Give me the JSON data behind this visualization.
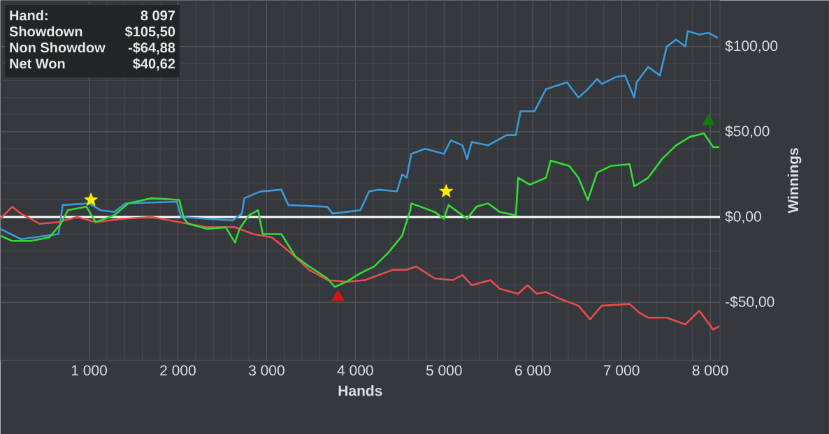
{
  "chart_data": {
    "type": "line",
    "xlabel": "Hands",
    "ylabel": "Winnings",
    "xlim": [
      0,
      8110
    ],
    "ylim": [
      -84,
      127
    ],
    "xticks": [
      {
        "value": 1000,
        "label": "1 000"
      },
      {
        "value": 2000,
        "label": "2 000"
      },
      {
        "value": 3000,
        "label": "3 000"
      },
      {
        "value": 4000,
        "label": "4 000"
      },
      {
        "value": 5000,
        "label": "5 000"
      },
      {
        "value": 6000,
        "label": "6 000"
      },
      {
        "value": 7000,
        "label": "7 000"
      },
      {
        "value": 8000,
        "label": "8 000"
      }
    ],
    "yticks": [
      {
        "value": -50,
        "label": "-$50,00"
      },
      {
        "value": 0,
        "label": "$0,00"
      },
      {
        "value": 50,
        "label": "$50,00"
      },
      {
        "value": 100,
        "label": "$100,00"
      }
    ],
    "grid": true,
    "marker": "none",
    "line_style": "solid",
    "ref_lines": [
      {
        "axis": "y",
        "value": 0,
        "color": "#ffffff"
      }
    ],
    "annotations": [
      "Hand:",
      "8 097",
      "Showdown",
      "$105,50",
      "Non Showdow",
      "-$64,88",
      "Net Won",
      "$40,62"
    ],
    "series": [
      {
        "color": "#3a9ad9",
        "x": [
          0,
          231,
          655,
          702,
          1000,
          1126,
          1283,
          1408,
          1989,
          2036,
          2617,
          2695,
          2722,
          2748,
          2931,
          3166,
          3245,
          3685,
          3742,
          4056,
          4155,
          4265,
          4469,
          4527,
          4579,
          4631,
          4788,
          4998,
          5077,
          5207,
          5259,
          5312,
          5495,
          5600,
          5705,
          5809,
          5862,
          6019,
          6149,
          6385,
          6515,
          6620,
          6725,
          6777,
          6934,
          7039,
          7143,
          7170,
          7300,
          7432,
          7510,
          7615,
          7719,
          7746,
          7876,
          7981,
          8085
        ],
        "values": [
          -7,
          -13,
          -10,
          7,
          8,
          4,
          3,
          8,
          9,
          0,
          -2,
          1,
          2,
          11,
          15,
          16,
          7,
          6,
          2,
          4,
          15,
          16,
          15,
          25,
          23,
          37,
          40,
          37,
          45,
          42,
          34,
          44,
          42,
          45,
          48,
          48,
          62,
          62,
          75,
          79,
          70,
          75,
          81,
          78,
          82,
          83,
          70,
          79,
          88,
          83,
          100,
          104,
          100,
          109,
          107,
          108,
          105
        ]
      },
      {
        "color": "#e84c4c",
        "x": [
          0,
          132,
          231,
          446,
          655,
          864,
          1074,
          1388,
          1702,
          2016,
          2330,
          2644,
          2852,
          3060,
          3271,
          3480,
          3689,
          3900,
          4108,
          4422,
          4579,
          4684,
          4893,
          5100,
          5207,
          5312,
          5521,
          5626,
          5835,
          5940,
          6044,
          6149,
          6306,
          6515,
          6646,
          6777,
          7091,
          7196,
          7300,
          7510,
          7719,
          7876,
          8033,
          8101
        ],
        "values": [
          -1,
          6,
          2,
          -4,
          -3,
          0,
          -3,
          -1,
          0,
          -3,
          -6,
          -6,
          -10,
          -12,
          -21,
          -31,
          -37,
          -38,
          -37,
          -31,
          -31,
          -29,
          -36,
          -37,
          -34,
          -40,
          -37,
          -42,
          -45,
          -40,
          -45,
          -44,
          -48,
          -52,
          -60,
          -52,
          -51,
          -56,
          -59,
          -59,
          -63,
          -55,
          -66,
          -64
        ]
      },
      {
        "color": "#33dd33",
        "x": [
          0,
          132,
          341,
          550,
          681,
          760,
          969,
          1074,
          1283,
          1440,
          1702,
          2016,
          2068,
          2120,
          2330,
          2538,
          2644,
          2695,
          2800,
          2904,
          2957,
          3166,
          3323,
          3480,
          3685,
          3768,
          3900,
          4056,
          4213,
          4370,
          4527,
          4620,
          4631,
          4684,
          4893,
          4998,
          5050,
          5259,
          5364,
          5495,
          5626,
          5809,
          5835,
          5966,
          6149,
          6201,
          6411,
          6515,
          6620,
          6725,
          6882,
          7091,
          7143,
          7300,
          7457,
          7615,
          7771,
          7928,
          8033,
          8101
        ],
        "values": [
          -11,
          -14,
          -14,
          -12,
          -4,
          4,
          6,
          -3,
          1,
          8,
          11,
          10,
          -1,
          -4,
          -7,
          -6,
          -15,
          -7,
          1,
          4,
          -10,
          -10,
          -23,
          -29,
          -36,
          -41,
          -38,
          -33,
          -29,
          -21,
          -11,
          4,
          8,
          7,
          3,
          -1,
          7,
          -1,
          6,
          8,
          3,
          1,
          23,
          19,
          23,
          33,
          30,
          23,
          10,
          26,
          30,
          31,
          18,
          23,
          34,
          42,
          47,
          49,
          41,
          41
        ]
      },
      {
        "type": "scatter",
        "marker": "star",
        "color": "#ffee00",
        "x": [
          1021,
          5024
        ],
        "values": [
          10,
          15
        ]
      },
      {
        "type": "scatter",
        "marker": "triangle",
        "color": "#117a11",
        "x": [
          7981
        ],
        "values": [
          56
        ]
      },
      {
        "type": "scatter",
        "marker": "triangle",
        "color": "#dd1111",
        "x": [
          3805
        ],
        "values": [
          -47
        ]
      }
    ]
  }
}
